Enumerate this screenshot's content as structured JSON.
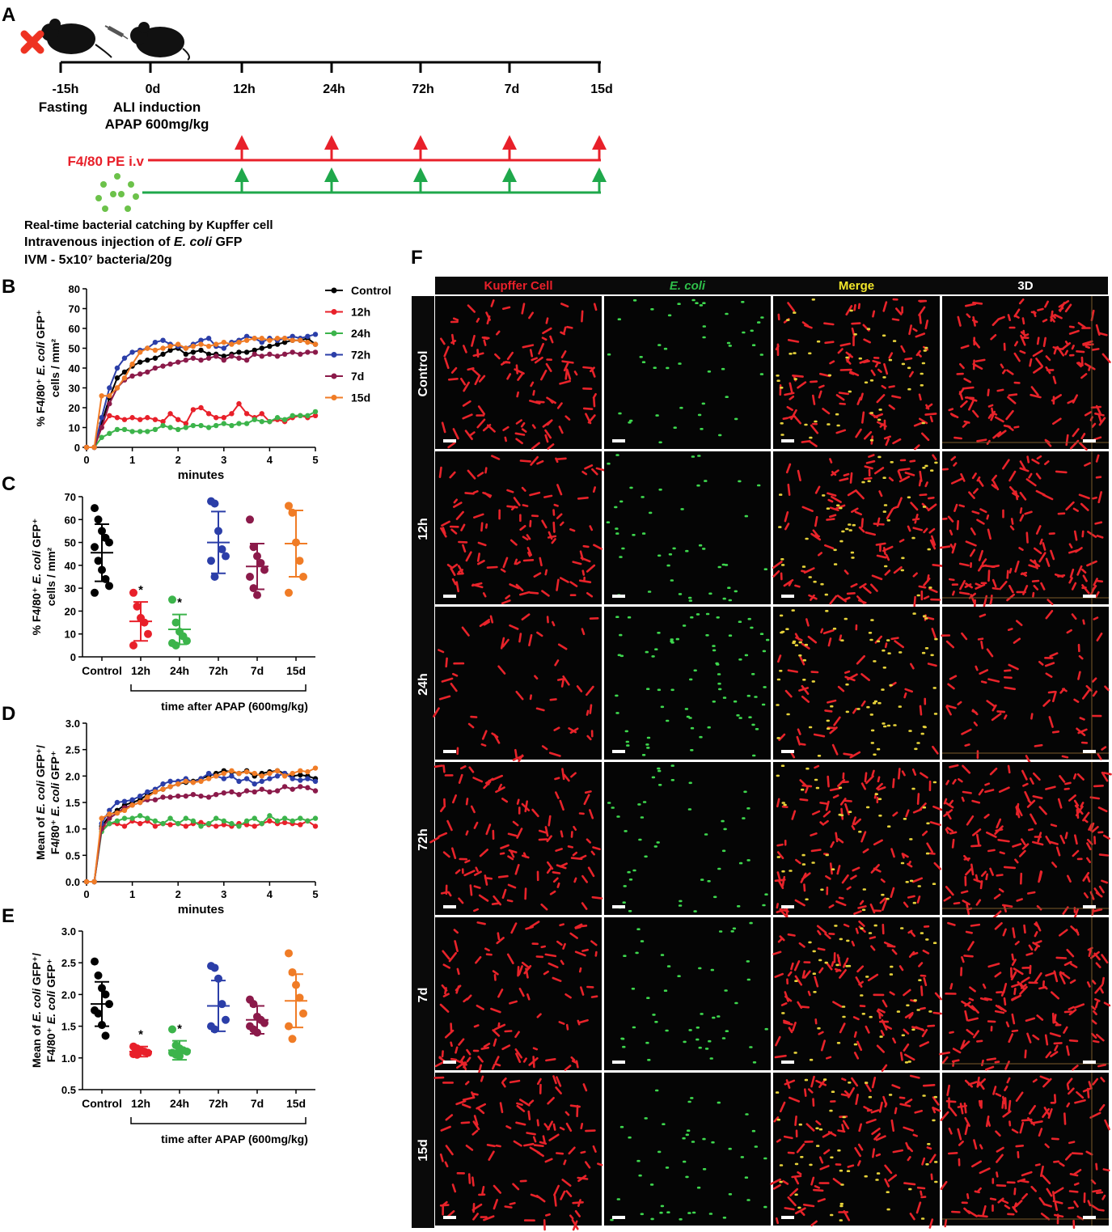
{
  "panel_labels": [
    "A",
    "B",
    "C",
    "D",
    "E",
    "F"
  ],
  "timeline": {
    "ticks": [
      {
        "time": "-15h",
        "sub": [
          "Fasting"
        ]
      },
      {
        "time": "0d",
        "sub": [
          "ALI induction",
          "APAP 600mg/kg"
        ]
      },
      {
        "time": "12h",
        "sub": []
      },
      {
        "time": "24h",
        "sub": []
      },
      {
        "time": "72h",
        "sub": []
      },
      {
        "time": "7d",
        "sub": []
      },
      {
        "time": "15d",
        "sub": []
      }
    ],
    "f480_label": "F4/80 PE i.v",
    "bact_line1": "Real-time bacterial catching by Kupffer cell",
    "bact_line2_pre": "Intravenous injection of ",
    "bact_line2_ital": "E. coli",
    "bact_line2_post": " GFP",
    "bact_line3": "IVM - 5x10⁷ bacteria/20g",
    "colors": {
      "red": "#e8202a",
      "green": "#1fa84b"
    }
  },
  "groups": [
    {
      "name": "Control",
      "color": "#000000"
    },
    {
      "name": "12h",
      "color": "#e8202a"
    },
    {
      "name": "24h",
      "color": "#3cb44b"
    },
    {
      "name": "72h",
      "color": "#2b3ea8"
    },
    {
      "name": "7d",
      "color": "#8b1a4a"
    },
    {
      "name": "15d",
      "color": "#f07c26"
    }
  ],
  "time_axis_label": "time after APAP (600mg/kg)",
  "ylabels": {
    "BC": [
      "% F4/80⁺ E. coli GFP⁺",
      "cells / mm²"
    ],
    "DE": [
      "Mean of E. coli GFP⁺/",
      "F4/80⁺ E. coli GFP⁺"
    ]
  },
  "chart_data": [
    {
      "panel": "B",
      "type": "line",
      "xlabel": "minutes",
      "xlim": [
        0,
        5
      ],
      "ylim": [
        0,
        80
      ],
      "xticks": [
        0,
        1,
        2,
        3,
        4,
        5
      ],
      "yticks": [
        0,
        10,
        20,
        30,
        40,
        50,
        60,
        70,
        80
      ],
      "x": [
        0,
        0.17,
        0.33,
        0.5,
        0.67,
        0.83,
        1,
        1.17,
        1.33,
        1.5,
        1.67,
        1.83,
        2,
        2.17,
        2.33,
        2.5,
        2.67,
        2.83,
        3,
        3.17,
        3.33,
        3.5,
        3.67,
        3.83,
        4,
        4.17,
        4.33,
        4.5,
        4.67,
        4.83,
        5
      ],
      "series": [
        {
          "name": "Control",
          "values": [
            0,
            0,
            12,
            25,
            35,
            38,
            41,
            43,
            44,
            45,
            47,
            49,
            50,
            47,
            48,
            49,
            47,
            47,
            46,
            47,
            48,
            48,
            49,
            50,
            51,
            52,
            53,
            54,
            54,
            55,
            52
          ]
        },
        {
          "name": "12h",
          "values": [
            0,
            0,
            10,
            16,
            15,
            14,
            15,
            14,
            15,
            14,
            13,
            17,
            14,
            12,
            19,
            20,
            17,
            15,
            15,
            17,
            22,
            17,
            15,
            17,
            13,
            14,
            13,
            15,
            16,
            15,
            16
          ]
        },
        {
          "name": "24h",
          "values": [
            0,
            0,
            5,
            7,
            9,
            9,
            8,
            8,
            8,
            9,
            11,
            10,
            9,
            10,
            11,
            11,
            10,
            11,
            12,
            11,
            12,
            12,
            14,
            13,
            13,
            15,
            14,
            16,
            16,
            16,
            18
          ]
        },
        {
          "name": "72h",
          "values": [
            0,
            0,
            15,
            30,
            40,
            45,
            48,
            49,
            50,
            53,
            54,
            52,
            51,
            50,
            52,
            54,
            55,
            51,
            50,
            53,
            54,
            56,
            55,
            53,
            55,
            54,
            55,
            56,
            55,
            56,
            57
          ]
        },
        {
          "name": "7d",
          "values": [
            0,
            0,
            10,
            22,
            30,
            34,
            36,
            37,
            38,
            40,
            41,
            42,
            43,
            44,
            45,
            44,
            45,
            46,
            44,
            46,
            45,
            44,
            47,
            46,
            47,
            46,
            47,
            48,
            47,
            48,
            48
          ]
        },
        {
          "name": "15d",
          "values": [
            0,
            0,
            26,
            26,
            30,
            35,
            42,
            48,
            50,
            49,
            50,
            51,
            52,
            50,
            51,
            52,
            51,
            52,
            53,
            52,
            53,
            54,
            55,
            55,
            54,
            55,
            55,
            54,
            54,
            53,
            52
          ]
        }
      ]
    },
    {
      "panel": "C",
      "type": "scatter",
      "ylim": [
        0,
        70
      ],
      "yticks": [
        0,
        10,
        20,
        30,
        40,
        50,
        60,
        70
      ],
      "categories": [
        "Control",
        "12h",
        "24h",
        "72h",
        "7d",
        "15d"
      ],
      "points": [
        [
          65,
          60,
          55,
          52,
          50,
          48,
          42,
          38,
          34,
          31,
          28
        ],
        [
          28,
          22,
          17,
          15,
          10,
          5
        ],
        [
          25,
          15,
          11,
          9,
          7,
          6,
          5
        ],
        [
          68,
          67,
          55,
          47,
          44,
          42,
          35
        ],
        [
          60,
          48,
          44,
          41,
          38,
          35,
          30,
          27
        ],
        [
          66,
          63,
          50,
          42,
          35,
          28
        ]
      ],
      "mean": [
        45.5,
        15.5,
        12,
        50,
        39.5,
        49.5
      ],
      "sd": [
        12.5,
        8.5,
        6.5,
        13.5,
        10,
        14.5
      ],
      "sig": [
        "",
        "*",
        "*",
        "",
        "",
        ""
      ]
    },
    {
      "panel": "D",
      "type": "line",
      "xlabel": "minutes",
      "xlim": [
        0,
        5
      ],
      "ylim": [
        0,
        3
      ],
      "xticks": [
        0,
        1,
        2,
        3,
        4,
        5
      ],
      "yticks": [
        0.0,
        0.5,
        1.0,
        1.5,
        2.0,
        2.5,
        3.0
      ],
      "x": [
        0,
        0.17,
        0.33,
        0.5,
        0.67,
        0.83,
        1,
        1.17,
        1.33,
        1.5,
        1.67,
        1.83,
        2,
        2.17,
        2.33,
        2.5,
        2.67,
        2.83,
        3,
        3.17,
        3.33,
        3.5,
        3.67,
        3.83,
        4,
        4.17,
        4.33,
        4.5,
        4.67,
        4.83,
        5
      ],
      "series": [
        {
          "name": "Control",
          "values": [
            0,
            0,
            1.05,
            1.25,
            1.35,
            1.45,
            1.5,
            1.55,
            1.65,
            1.7,
            1.75,
            1.8,
            1.85,
            1.88,
            1.9,
            1.95,
            2.0,
            2.05,
            2.1,
            2.08,
            2.05,
            2.1,
            2.0,
            2.05,
            2.08,
            2.1,
            2.05,
            2.0,
            2.02,
            2.0,
            1.95
          ]
        },
        {
          "name": "12h",
          "values": [
            0,
            0,
            1.0,
            1.1,
            1.1,
            1.05,
            1.15,
            1.1,
            1.15,
            1.05,
            1.1,
            1.08,
            1.1,
            1.05,
            1.1,
            1.12,
            1.08,
            1.05,
            1.08,
            1.05,
            1.1,
            1.08,
            1.05,
            1.1,
            1.15,
            1.1,
            1.12,
            1.1,
            1.08,
            1.15,
            1.05
          ]
        },
        {
          "name": "24h",
          "values": [
            0,
            0,
            0.95,
            1.1,
            1.15,
            1.2,
            1.2,
            1.25,
            1.2,
            1.15,
            1.1,
            1.2,
            1.1,
            1.2,
            1.15,
            1.05,
            1.1,
            1.2,
            1.15,
            1.1,
            1.05,
            1.15,
            1.2,
            1.1,
            1.25,
            1.15,
            1.2,
            1.15,
            1.2,
            1.15,
            1.2
          ]
        },
        {
          "name": "72h",
          "values": [
            0,
            0,
            1.1,
            1.35,
            1.5,
            1.52,
            1.55,
            1.62,
            1.7,
            1.75,
            1.85,
            1.9,
            1.9,
            1.95,
            1.88,
            1.95,
            2.05,
            2.0,
            1.95,
            2.0,
            1.9,
            1.95,
            1.85,
            1.9,
            1.95,
            2.0,
            2.05,
            1.95,
            1.92,
            1.95,
            1.9
          ]
        },
        {
          "name": "7d",
          "values": [
            0,
            0,
            1.0,
            1.2,
            1.3,
            1.4,
            1.45,
            1.5,
            1.55,
            1.55,
            1.6,
            1.6,
            1.62,
            1.62,
            1.65,
            1.62,
            1.6,
            1.65,
            1.68,
            1.7,
            1.65,
            1.72,
            1.7,
            1.75,
            1.7,
            1.72,
            1.8,
            1.75,
            1.8,
            1.78,
            1.72
          ]
        },
        {
          "name": "15d",
          "values": [
            0,
            0,
            1.2,
            1.28,
            1.3,
            1.35,
            1.45,
            1.5,
            1.6,
            1.7,
            1.75,
            1.8,
            1.85,
            1.9,
            1.88,
            1.9,
            1.95,
            2.0,
            2.05,
            2.1,
            2.05,
            2.08,
            2.05,
            2.0,
            2.05,
            2.1,
            2.0,
            2.05,
            2.1,
            2.08,
            2.15
          ]
        }
      ]
    },
    {
      "panel": "E",
      "type": "scatter",
      "ylim": [
        0.5,
        3.0
      ],
      "yticks": [
        0.5,
        1.0,
        1.5,
        2.0,
        2.5,
        3.0
      ],
      "categories": [
        "Control",
        "12h",
        "24h",
        "72h",
        "7d",
        "15d"
      ],
      "points": [
        [
          2.52,
          2.3,
          2.1,
          2.0,
          1.85,
          1.75,
          1.7,
          1.52,
          1.35
        ],
        [
          1.18,
          1.15,
          1.12,
          1.1,
          1.08,
          1.06,
          1.05
        ],
        [
          1.45,
          1.2,
          1.15,
          1.12,
          1.1,
          1.08,
          1.05,
          1.03
        ],
        [
          2.45,
          2.42,
          2.25,
          1.85,
          1.6,
          1.5,
          1.45
        ],
        [
          1.92,
          1.85,
          1.65,
          1.6,
          1.55,
          1.5,
          1.45,
          1.4
        ],
        [
          2.65,
          2.35,
          2.15,
          1.95,
          1.7,
          1.5,
          1.3
        ]
      ],
      "mean": [
        1.85,
        1.1,
        1.12,
        1.82,
        1.6,
        1.9
      ],
      "sd": [
        0.35,
        0.08,
        0.15,
        0.4,
        0.22,
        0.42
      ],
      "sig": [
        "",
        "*",
        "*",
        "",
        "",
        ""
      ]
    }
  ],
  "panel_f": {
    "columns": [
      {
        "label": "Kupffer Cell",
        "color": "#e8202a",
        "italic": false
      },
      {
        "label": "E. coli",
        "color": "#2fbf4a",
        "italic": true
      },
      {
        "label": "Merge",
        "color": "#f3e72a",
        "italic": false
      },
      {
        "label": "3D",
        "color": "#ffffff",
        "italic": false
      }
    ],
    "rows": [
      "Control",
      "12h",
      "24h",
      "72h",
      "7d",
      "15d"
    ]
  }
}
